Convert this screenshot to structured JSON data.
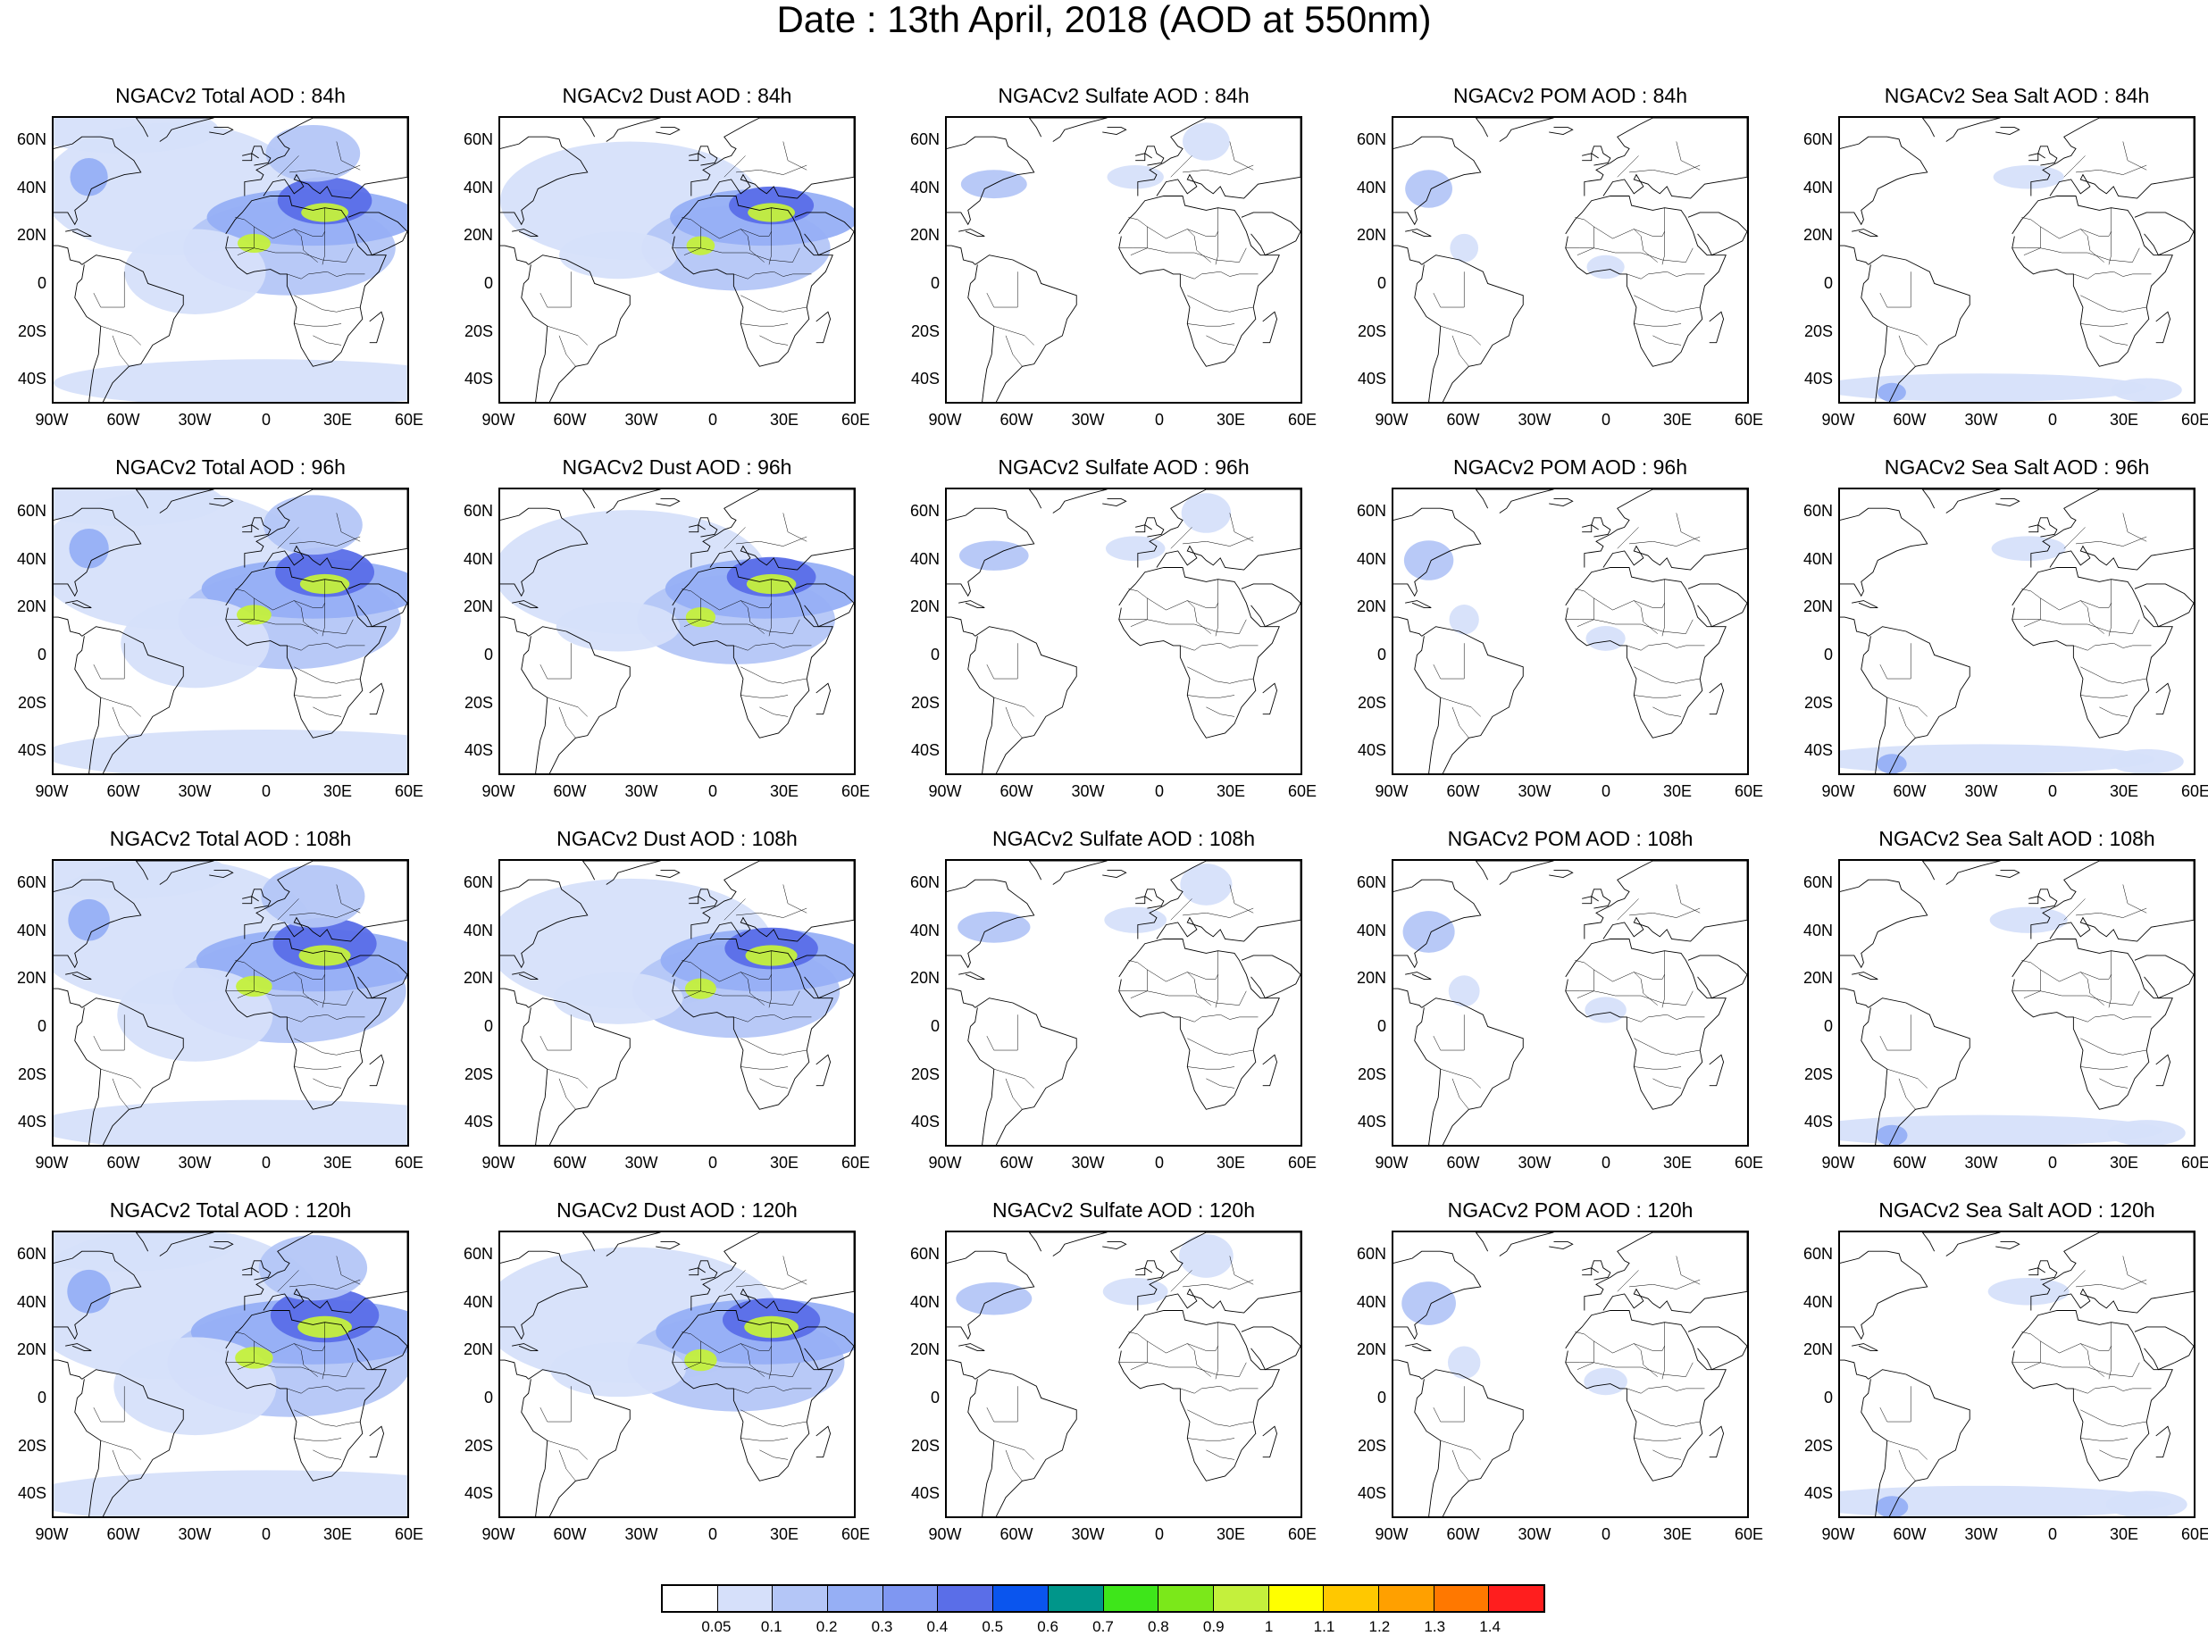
{
  "title": "Date : 13th April, 2018 (AOD at 550nm)",
  "columns": [
    "Total",
    "Dust",
    "Sulfate",
    "POM",
    "Sea Salt"
  ],
  "rows": [
    "84h",
    "96h",
    "108h",
    "120h"
  ],
  "panels": [
    [
      "NGACv2 Total AOD : 84h",
      "NGACv2 Dust AOD : 84h",
      "NGACv2 Sulfate AOD : 84h",
      "NGACv2 POM AOD : 84h",
      "NGACv2 Sea Salt AOD : 84h"
    ],
    [
      "NGACv2 Total AOD : 96h",
      "NGACv2 Dust AOD : 96h",
      "NGACv2 Sulfate AOD : 96h",
      "NGACv2 POM AOD : 96h",
      "NGACv2 Sea Salt AOD : 96h"
    ],
    [
      "NGACv2 Total AOD : 108h",
      "NGACv2 Dust AOD : 108h",
      "NGACv2 Sulfate AOD : 108h",
      "NGACv2 POM AOD : 108h",
      "NGACv2 Sea Salt AOD : 108h"
    ],
    [
      "NGACv2 Total AOD : 120h",
      "NGACv2 Dust AOD : 120h",
      "NGACv2 Sulfate AOD : 120h",
      "NGACv2 POM AOD : 120h",
      "NGACv2 Sea Salt  AOD : 120h"
    ]
  ],
  "lat_ticks": [
    "60N",
    "40N",
    "20N",
    "0",
    "20S",
    "40S"
  ],
  "lon_ticks": [
    "90W",
    "60W",
    "30W",
    "0",
    "30E",
    "60E"
  ],
  "colorbar": {
    "labels": [
      "0.05",
      "0.1",
      "0.2",
      "0.3",
      "0.4",
      "0.5",
      "0.6",
      "0.7",
      "0.8",
      "0.9",
      "1",
      "1.1",
      "1.2",
      "1.3",
      "1.4"
    ],
    "colors": [
      "#ffffff",
      "#d6e0fa",
      "#b4c6f7",
      "#96aff5",
      "#7f97f2",
      "#5a6ee8",
      "#0a55ee",
      "#00968a",
      "#3ee61a",
      "#7be81a",
      "#c4f03c",
      "#ffff00",
      "#ffc800",
      "#ffa000",
      "#ff7800",
      "#ff1e1e"
    ]
  },
  "map_extent": {
    "lon": [
      -90,
      60
    ],
    "lat": [
      -50,
      70
    ]
  }
}
